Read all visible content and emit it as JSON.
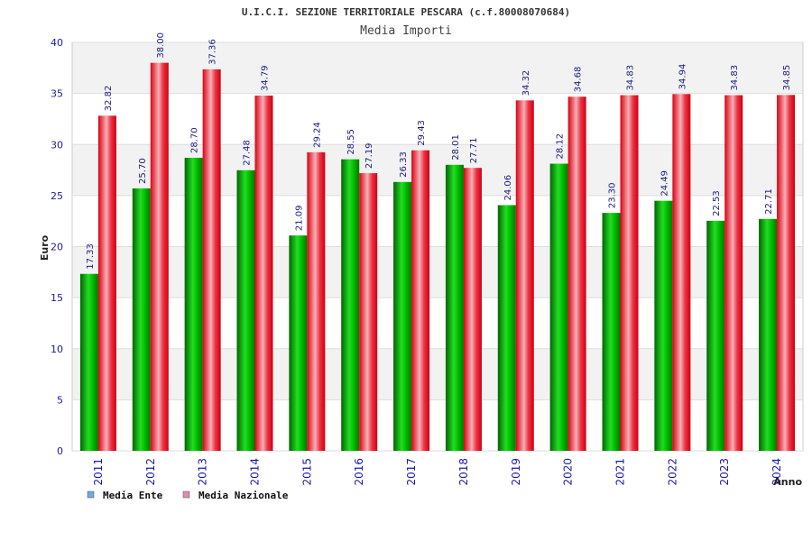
{
  "chart_data": {
    "type": "bar",
    "title": "U.I.C.I. SEZIONE TERRITORIALE PESCARA (c.f.80008070684)",
    "subtitle": "Media Importi",
    "xlabel": "Anno",
    "ylabel": "Euro",
    "ylim": [
      0,
      40
    ],
    "yticks": [
      0,
      5,
      10,
      15,
      20,
      25,
      30,
      35,
      40
    ],
    "grid": true,
    "legend_position": "bottom-left",
    "categories": [
      "2011",
      "2012",
      "2013",
      "2014",
      "2015",
      "2016",
      "2017",
      "2018",
      "2019",
      "2020",
      "2021",
      "2022",
      "2023",
      "2024"
    ],
    "series": [
      {
        "name": "Media Ente",
        "color": "#00cc00",
        "legend_color": "#6fa8e8",
        "values": [
          17.33,
          25.7,
          28.7,
          27.48,
          21.09,
          28.55,
          26.33,
          28.01,
          24.06,
          28.12,
          23.3,
          24.49,
          22.53,
          22.71
        ],
        "labels": [
          "17.33",
          "25.70",
          "28.70",
          "27.48",
          "21.09",
          "28.55",
          "26.33",
          "28.01",
          "24.06",
          "28.12",
          "23.30",
          "24.49",
          "22.53",
          "22.71"
        ]
      },
      {
        "name": "Media Nazionale",
        "color": "#ee1122",
        "legend_color": "#e08ab0",
        "values": [
          32.82,
          38.0,
          37.36,
          34.79,
          29.24,
          27.19,
          29.43,
          27.71,
          34.32,
          34.68,
          34.83,
          34.94,
          34.83,
          34.85
        ],
        "labels": [
          "32.82",
          "38.00",
          "37.36",
          "34.79",
          "29.24",
          "27.19",
          "29.43",
          "27.71",
          "34.32",
          "34.68",
          "34.83",
          "34.94",
          "34.83",
          "34.85"
        ]
      }
    ]
  }
}
